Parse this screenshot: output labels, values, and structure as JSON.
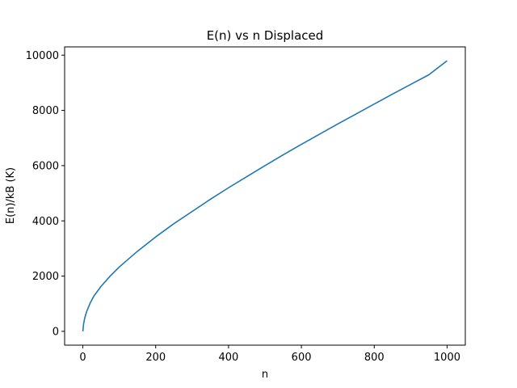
{
  "chart_data": {
    "type": "line",
    "title": "E(n) vs n Displaced",
    "xlabel": "n",
    "ylabel": "E(n)/kB (K)",
    "xlim": [
      -50,
      1050
    ],
    "ylim": [
      -500,
      10300
    ],
    "xticks": [
      0,
      200,
      400,
      600,
      800,
      1000
    ],
    "yticks": [
      0,
      2000,
      4000,
      6000,
      8000,
      10000
    ],
    "grid": false,
    "series": [
      {
        "color": "#1f77b4",
        "x": [
          0,
          2,
          5,
          10,
          20,
          30,
          50,
          75,
          100,
          150,
          200,
          250,
          300,
          350,
          400,
          450,
          500,
          550,
          600,
          650,
          700,
          750,
          800,
          850,
          900,
          950,
          1000
        ],
        "values": [
          0,
          260,
          470,
          700,
          1020,
          1270,
          1630,
          2000,
          2330,
          2900,
          3420,
          3900,
          4340,
          4780,
          5200,
          5600,
          6000,
          6390,
          6770,
          7140,
          7510,
          7870,
          8230,
          8590,
          8940,
          9290,
          9800
        ]
      }
    ]
  }
}
